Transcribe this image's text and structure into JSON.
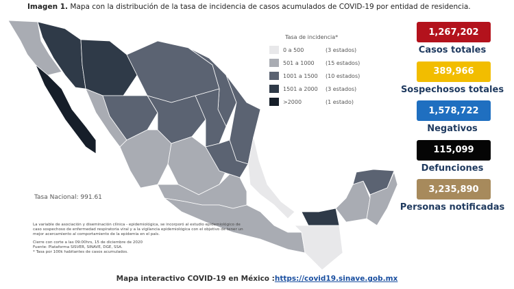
{
  "title": {
    "label": "Imagen 1.",
    "text": "Mapa con la distribución de la tasa de incidencia de casos acumulados de COVID-19 por entidad de residencia."
  },
  "legend": {
    "title": "Tasa de incidencia*",
    "items": [
      {
        "range": "0 a 500",
        "count": "(3 estados)",
        "color": "#e8e8ea"
      },
      {
        "range": "501 a 1000",
        "count": "(15 estados)",
        "color": "#a9acb3"
      },
      {
        "range": "1001 a 1500",
        "count": "(10 estados)",
        "color": "#5b6372"
      },
      {
        "range": "1501 a 2000",
        "count": "(3 estados)",
        "color": "#2f3a48"
      },
      {
        "range": ">2000",
        "count": "(1 estado)",
        "color": "#161e29"
      }
    ]
  },
  "national_rate": "Tasa Nacional: 991.61",
  "notes": [
    "La variable de asociación y diseminación clínica - epidemiológica, se incorporó al estudio epidemiológico de caso sospechoso de enfermedad respiratoria viral y a la vigilancia epidemiológica con el objetivo de tener un mejor acercamiento al comportamiento de la epidemia en el país.",
    "Cierre con corte a las 09:00hrs, 15 de diciembre de 2020",
    "Fuente: Plataforma SISVER, SINAVE, DGE, SSA.",
    "* Tasa por 100k habitantes de casos acumulados."
  ],
  "stats": [
    {
      "value": "1,267,202",
      "label": "Casos totales",
      "color": "#b3121c"
    },
    {
      "value": "389,966",
      "label": "Sospechosos totales",
      "color": "#f2bd00"
    },
    {
      "value": "1,578,722",
      "label": "Negativos",
      "color": "#1f6fc0"
    },
    {
      "value": "115,099",
      "label": "Defunciones",
      "color": "#050505"
    },
    {
      "value": "3,235,890",
      "label": "Personas notificadas",
      "color": "#a78a5c"
    }
  ],
  "footer": {
    "text": "Mapa interactivo COVID-19 en México :",
    "link": "https://covid19.sinave.gob.mx"
  }
}
